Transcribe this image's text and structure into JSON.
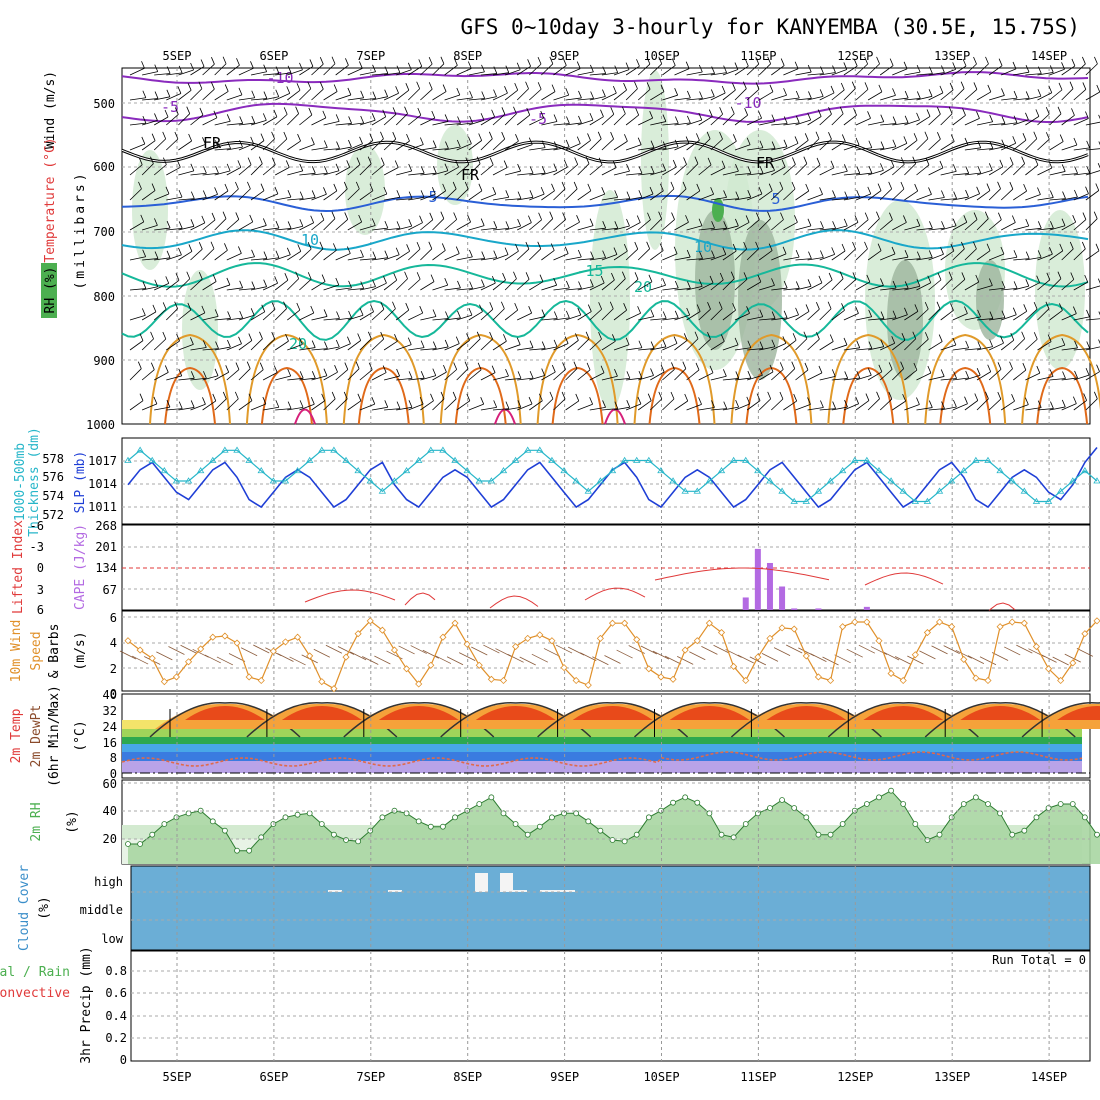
{
  "title": "GFS 0~10day 3-hourly for KANYEMBA (30.5E, 15.75S)",
  "days": [
    "5SEP",
    "6SEP",
    "7SEP",
    "8SEP",
    "9SEP",
    "10SEP",
    "11SEP",
    "12SEP",
    "13SEP",
    "14SEP"
  ],
  "colors": {
    "cloud_fill": "#6baed6",
    "rh_green": "#4caf50",
    "cape": "#b36ae2",
    "lifted_index": "#e03a3a",
    "slp": "#1f3fd6",
    "thickness": "#27b6c9",
    "wind_speed": "#e0902a",
    "temp_purple": "#8a2bbd",
    "temp_blue": "#2a5fd6",
    "temp_cyan": "#19a7c9",
    "temp_teal": "#16b89a",
    "temp_orange": "#e09a2a",
    "temp_magenta": "#d6207a"
  },
  "panel_upper_air": {
    "ylabel_wind": "Wind",
    "ylabel_units": "(m/s)",
    "ylabel_temp": "Temperature",
    "ylabel_temp_units": "(°C)",
    "ylabel_rh": "RH (%)",
    "ylabel_mb": "(millibars)",
    "ticks": [
      "500",
      "600",
      "700",
      "800",
      "900",
      "1000"
    ],
    "contour_labels": [
      "-10",
      "-5",
      "-5",
      "-10",
      "FR",
      "FR",
      "FR",
      "5",
      "5",
      "10",
      "10",
      "-15",
      "20",
      "20"
    ]
  },
  "panel_slp": {
    "ylabel_left": "1000-500mb",
    "ylabel_left2": "Thickness (dm)",
    "ylabel_right": "SLP (mb)",
    "ticks_left": [
      "578",
      "576",
      "574",
      "572"
    ],
    "ticks_right": [
      "1017",
      "1014",
      "1011"
    ]
  },
  "panel_cape": {
    "ylabel_left": "Lifted Index",
    "ylabel_right": "CAPE (J/kg)",
    "ticks_left": [
      "-6",
      "-3",
      "0",
      "3",
      "6"
    ],
    "ticks_right": [
      "268",
      "201",
      "134",
      "67"
    ]
  },
  "panel_wind10": {
    "ylabel1": "10m Wind",
    "ylabel2": "Speed",
    "ylabel3": "& Barbs",
    "ylabel_units": "(m/s)",
    "ticks": [
      "6",
      "4",
      "2",
      "0"
    ]
  },
  "panel_temp2m": {
    "ylabel1": "2m Temp",
    "ylabel2": "2m DewPt",
    "ylabel3": "(6hr Min/Max)",
    "ylabel_units": "(°C)",
    "ticks": [
      "40",
      "32",
      "24",
      "16",
      "8",
      "0"
    ]
  },
  "panel_rh2m": {
    "ylabel": "2m RH",
    "ylabel_units": "(%)",
    "ticks": [
      "60",
      "40",
      "20"
    ]
  },
  "panel_cloud": {
    "ylabel": "Cloud Cover",
    "ylabel_units": "(%)",
    "levels": [
      "high",
      "middle",
      "low"
    ]
  },
  "panel_precip": {
    "ylabel1": "Total / Rain",
    "ylabel2": "Convective",
    "ylabel3": "3hr Precip (mm)",
    "ticks": [
      "0.8",
      "0.6",
      "0.4",
      "0.2",
      "0"
    ],
    "run_total": "Run Total = 0"
  },
  "chart_data": [
    {
      "type": "line",
      "name": "SLP (mb)",
      "x_unit": "3-hourly steps from 4SEP 18Z",
      "values": [
        1014,
        1016,
        1017,
        1015,
        1013,
        1012,
        1014,
        1016,
        1017,
        1015,
        1012,
        1011,
        1013,
        1015,
        1016,
        1015,
        1013,
        1011,
        1012,
        1014,
        1016,
        1017,
        1014,
        1012,
        1011,
        1013,
        1015,
        1016,
        1015,
        1013,
        1011,
        1012,
        1014,
        1016,
        1017,
        1015,
        1013,
        1011,
        1012,
        1014,
        1016,
        1017,
        1015,
        1012,
        1011,
        1013,
        1015,
        1016,
        1015,
        1013,
        1011,
        1012,
        1014,
        1016,
        1017,
        1015,
        1013,
        1011,
        1012,
        1014,
        1016,
        1017,
        1015,
        1013,
        1011,
        1012,
        1014,
        1016,
        1017,
        1015,
        1012,
        1011,
        1013,
        1015,
        1016,
        1015,
        1013,
        1012,
        1014,
        1017,
        1019
      ],
      "ylim": [
        1009,
        1020
      ]
    },
    {
      "type": "line",
      "name": "1000-500mb Thickness (dm)",
      "values": [
        577,
        578,
        577,
        576,
        575,
        575,
        576,
        577,
        578,
        578,
        577,
        576,
        575,
        575,
        576,
        577,
        578,
        578,
        577,
        576,
        575,
        574,
        575,
        576,
        577,
        578,
        578,
        577,
        576,
        575,
        575,
        576,
        577,
        578,
        578,
        577,
        576,
        575,
        574,
        575,
        576,
        577,
        577,
        577,
        576,
        575,
        574,
        574,
        575,
        576,
        577,
        577,
        576,
        575,
        574,
        573,
        573,
        574,
        575,
        576,
        577,
        577,
        576,
        575,
        574,
        573,
        573,
        574,
        575,
        576,
        577,
        577,
        576,
        575,
        574,
        573,
        573,
        574,
        575,
        576,
        575
      ],
      "ylim": [
        571,
        579
      ]
    },
    {
      "type": "bar",
      "name": "CAPE (J/kg)",
      "x_index": [
        51,
        52,
        53,
        54,
        55,
        57,
        61
      ],
      "values": [
        40,
        195,
        150,
        75,
        5,
        5,
        10
      ],
      "ylim": [
        0,
        268
      ]
    },
    {
      "type": "line",
      "name": "10m Wind Speed (m/s)",
      "values": [
        4.3,
        3.5,
        2.8,
        0.8,
        1.2,
        2.5,
        3.6,
        4.6,
        4.7,
        4.1,
        1.2,
        0.9,
        3.4,
        4.2,
        4.6,
        3.0,
        0.8,
        0.2,
        2.9,
        4.9,
        6.0,
        5.2,
        3.5,
        1.9,
        0.6,
        2.2,
        4.6,
        5.8,
        4.0,
        2.2,
        1.0,
        0.9,
        3.8,
        4.5,
        4.8,
        4.3,
        2.0,
        0.9,
        0.5,
        4.5,
        5.8,
        5.8,
        4.4,
        1.9,
        1.2,
        1.0,
        3.5,
        4.3,
        5.8,
        5.0,
        2.1,
        0.9,
        2.9,
        4.5,
        5.4,
        5.3,
        3.0,
        1.2,
        0.9,
        5.5,
        5.9,
        5.9,
        4.3,
        1.5,
        0.9,
        3.1,
        5.0,
        5.9,
        5.5,
        2.7,
        1.1,
        0.9,
        5.5,
        5.9,
        5.8,
        3.8,
        1.9,
        0.9,
        2.4,
        4.9,
        6.0
      ],
      "ylim": [
        0,
        6.5
      ]
    },
    {
      "type": "area",
      "name": "2m RH (%)",
      "values": [
        15,
        15,
        22,
        30,
        35,
        38,
        40,
        32,
        25,
        10,
        10,
        20,
        30,
        35,
        37,
        38,
        30,
        22,
        18,
        17,
        25,
        35,
        40,
        38,
        32,
        28,
        28,
        35,
        40,
        45,
        50,
        38,
        30,
        22,
        28,
        35,
        38,
        38,
        32,
        25,
        18,
        17,
        22,
        35,
        40,
        46,
        50,
        46,
        38,
        22,
        20,
        30,
        38,
        42,
        48,
        42,
        35,
        22,
        22,
        30,
        40,
        45,
        50,
        55,
        45,
        30,
        18,
        22,
        35,
        45,
        50,
        45,
        38,
        22,
        25,
        35,
        42,
        45,
        45,
        35,
        22,
        20,
        30,
        38,
        40,
        40
      ],
      "ylim": [
        0,
        60
      ]
    }
  ]
}
